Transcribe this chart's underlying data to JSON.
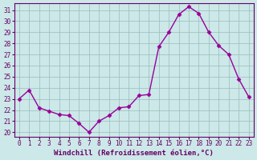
{
  "x": [
    0,
    1,
    2,
    3,
    4,
    5,
    6,
    7,
    8,
    9,
    10,
    11,
    12,
    13,
    14,
    15,
    16,
    17,
    18,
    19,
    20,
    21,
    22,
    23
  ],
  "y": [
    23.0,
    23.8,
    22.2,
    21.9,
    21.6,
    21.5,
    20.8,
    20.0,
    21.0,
    21.5,
    22.2,
    22.3,
    23.3,
    23.4,
    27.7,
    29.0,
    30.6,
    31.3,
    30.7,
    29.0,
    27.8,
    27.0,
    24.8,
    23.2
  ],
  "line_color": "#990099",
  "marker": "D",
  "marker_size": 2.5,
  "line_width": 1.0,
  "bg_color": "#cce8e8",
  "grid_color": "#99bbbb",
  "xlabel": "Windchill (Refroidissement éolien,°C)",
  "ylim": [
    19.6,
    31.6
  ],
  "xlim": [
    -0.5,
    23.5
  ],
  "yticks": [
    20,
    21,
    22,
    23,
    24,
    25,
    26,
    27,
    28,
    29,
    30,
    31
  ],
  "xticks": [
    0,
    1,
    2,
    3,
    4,
    5,
    6,
    7,
    8,
    9,
    10,
    11,
    12,
    13,
    14,
    15,
    16,
    17,
    18,
    19,
    20,
    21,
    22,
    23
  ],
  "tick_color": "#660066",
  "label_color": "#660066",
  "axis_color": "#660066",
  "xlabel_fontsize": 6.5,
  "tick_fontsize": 5.5
}
